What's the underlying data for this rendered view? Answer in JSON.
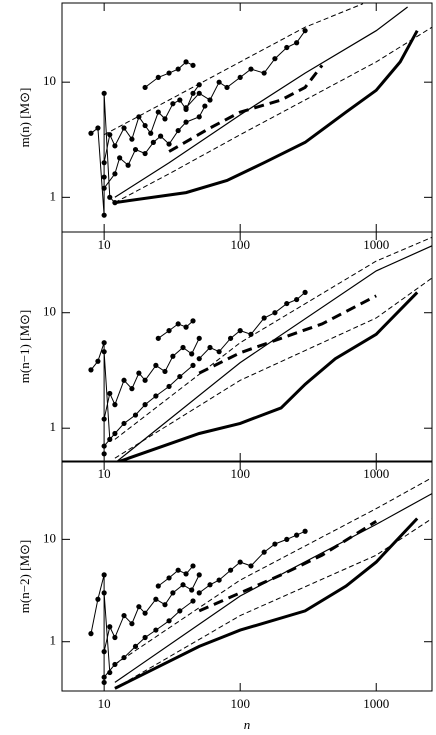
{
  "chart_data": [
    {
      "type": "line",
      "log": true,
      "ylabel": "m(n) [M⊙]",
      "color": "#000000",
      "xlim": [
        4.9,
        2570
      ],
      "ylim": [
        0.5,
        48.7
      ],
      "xticks": [
        10,
        100,
        1000
      ],
      "yticks": [
        1,
        10
      ],
      "series": [
        {
          "style": "solid",
          "width": 1.2,
          "x": [
            12,
            30,
            100,
            300,
            1000,
            1700
          ],
          "values": [
            1.0,
            2.0,
            5.2,
            12,
            28,
            45
          ]
        },
        {
          "style": "dashed",
          "width": 1,
          "x": [
            10,
            30,
            100,
            300,
            800
          ],
          "values": [
            3.5,
            7,
            15,
            30,
            48
          ]
        },
        {
          "style": "dashed",
          "width": 1,
          "x": [
            12,
            30,
            100,
            300,
            1000,
            2570
          ],
          "values": [
            0.9,
            1.6,
            3.5,
            7,
            15,
            30
          ]
        },
        {
          "style": "solid",
          "width": 3,
          "x": [
            12,
            40,
            80,
            150,
            300,
            600,
            1000,
            1500,
            2000
          ],
          "values": [
            0.9,
            1.1,
            1.4,
            2,
            3,
            5.5,
            8.5,
            15,
            28
          ]
        },
        {
          "style": "thickdash",
          "width": 3,
          "x": [
            30,
            60,
            100,
            200,
            300,
            400
          ],
          "values": [
            2.5,
            4,
            5.5,
            7,
            9,
            14
          ]
        },
        {
          "style": "marker",
          "width": 1,
          "x": [
            10,
            11,
            12,
            14,
            16,
            18,
            20,
            22,
            25,
            28,
            32,
            36,
            40,
            45,
            50
          ],
          "values": [
            2.0,
            3.5,
            2.8,
            4.0,
            3.2,
            5.0,
            4.2,
            3.6,
            5.5,
            4.8,
            6.5,
            7.0,
            5.8,
            8.0,
            9.5
          ]
        },
        {
          "style": "marker",
          "width": 1,
          "x": [
            10,
            12,
            13,
            15,
            17,
            20,
            23,
            26,
            30,
            35,
            40,
            50,
            55
          ],
          "values": [
            1.2,
            1.6,
            2.2,
            1.9,
            2.6,
            2.4,
            3.0,
            3.4,
            2.9,
            3.8,
            4.5,
            5.0,
            6.2
          ]
        },
        {
          "style": "marker",
          "width": 1,
          "x": [
            8,
            9,
            10,
            10,
            10,
            11,
            12
          ],
          "values": [
            3.6,
            4.0,
            0.7,
            1.5,
            8.0,
            1.0,
            0.9
          ]
        },
        {
          "style": "marker",
          "width": 1,
          "x": [
            40,
            50,
            60,
            70,
            80,
            100,
            120,
            150,
            180,
            220,
            260,
            300
          ],
          "values": [
            6,
            8,
            7,
            10,
            9,
            11,
            13,
            12,
            16,
            20,
            22,
            28
          ]
        },
        {
          "style": "marker",
          "width": 1,
          "x": [
            20,
            25,
            30,
            35,
            40,
            45
          ],
          "values": [
            9,
            11,
            12,
            13,
            15,
            14
          ]
        }
      ]
    },
    {
      "type": "line",
      "log": true,
      "ylabel": "m(n−1) [M⊙]",
      "color": "#000000",
      "xlim": [
        4.9,
        2570
      ],
      "ylim": [
        0.52,
        50
      ],
      "xticks": [
        10,
        100,
        1000
      ],
      "yticks": [
        1,
        10
      ],
      "series": [
        {
          "style": "solid",
          "width": 1.2,
          "x": [
            12,
            100,
            1000,
            2570
          ],
          "values": [
            0.5,
            3.7,
            23,
            38
          ]
        },
        {
          "style": "dashed",
          "width": 1,
          "x": [
            12,
            100,
            1000,
            2570
          ],
          "values": [
            0.8,
            5.5,
            28,
            45
          ]
        },
        {
          "style": "dashed",
          "width": 1,
          "x": [
            12,
            100,
            1000,
            2570
          ],
          "values": [
            0.55,
            2.6,
            9,
            20
          ]
        },
        {
          "style": "solid",
          "width": 3,
          "x": [
            12,
            50,
            100,
            200,
            300,
            500,
            1000,
            2000
          ],
          "values": [
            0.5,
            0.9,
            1.1,
            1.5,
            2.4,
            4,
            6.5,
            15
          ]
        },
        {
          "style": "thickdash",
          "width": 3,
          "x": [
            50,
            100,
            200,
            400,
            1000
          ],
          "values": [
            3,
            4.5,
            6,
            8,
            14
          ]
        },
        {
          "style": "marker",
          "width": 1,
          "x": [
            10,
            11,
            12,
            14,
            16,
            18,
            20,
            24,
            28,
            32,
            38,
            44,
            50
          ],
          "values": [
            1.2,
            2.0,
            1.6,
            2.6,
            2.2,
            3.0,
            2.6,
            3.5,
            3.1,
            4.2,
            5.0,
            4.4,
            6.0
          ]
        },
        {
          "style": "marker",
          "width": 1,
          "x": [
            10,
            12,
            14,
            17,
            20,
            24,
            30,
            36,
            45
          ],
          "values": [
            0.7,
            0.9,
            1.1,
            1.3,
            1.6,
            1.9,
            2.3,
            2.8,
            3.5
          ]
        },
        {
          "style": "marker",
          "width": 1,
          "x": [
            8,
            9,
            10,
            10,
            10,
            11
          ],
          "values": [
            3.2,
            3.8,
            5.5,
            0.6,
            4.6,
            0.8
          ]
        },
        {
          "style": "marker",
          "width": 1,
          "x": [
            50,
            60,
            70,
            85,
            100,
            120,
            150,
            180,
            220,
            260,
            300
          ],
          "values": [
            4,
            5,
            4.6,
            6,
            7,
            6.5,
            9,
            10,
            12,
            13,
            15
          ]
        },
        {
          "style": "marker",
          "width": 1,
          "x": [
            25,
            30,
            35,
            40,
            45
          ],
          "values": [
            6,
            7,
            8,
            7.5,
            8.5
          ]
        }
      ]
    },
    {
      "type": "line",
      "log": true,
      "ylabel": "m(n−2) [M⊙]",
      "xlabel": "n",
      "color": "#000000",
      "xlim": [
        4.9,
        2570
      ],
      "ylim": [
        0.33,
        57
      ],
      "xticks": [
        10,
        100,
        1000
      ],
      "yticks": [
        1,
        10
      ],
      "series": [
        {
          "style": "solid",
          "width": 1.2,
          "x": [
            12,
            100,
            1000,
            2570
          ],
          "values": [
            0.4,
            2.8,
            14,
            28
          ]
        },
        {
          "style": "dashed",
          "width": 1,
          "x": [
            12,
            100,
            1000,
            2570
          ],
          "values": [
            0.6,
            4,
            20,
            40
          ]
        },
        {
          "style": "dashed",
          "width": 1,
          "x": [
            12,
            100,
            1000,
            2570
          ],
          "values": [
            0.35,
            1.8,
            7,
            16
          ]
        },
        {
          "style": "solid",
          "width": 3,
          "x": [
            12,
            50,
            100,
            300,
            600,
            1000,
            2000
          ],
          "values": [
            0.35,
            0.9,
            1.3,
            2,
            3.5,
            6,
            16
          ]
        },
        {
          "style": "thickdash",
          "width": 3,
          "x": [
            50,
            100,
            200,
            400,
            1000
          ],
          "values": [
            2,
            3,
            4.5,
            7,
            15
          ]
        },
        {
          "style": "marker",
          "width": 1,
          "x": [
            10,
            11,
            12,
            14,
            16,
            18,
            20,
            24,
            28,
            32,
            38,
            44,
            50
          ],
          "values": [
            0.8,
            1.4,
            1.1,
            1.8,
            1.5,
            2.2,
            1.9,
            2.6,
            2.3,
            3.0,
            3.6,
            3.2,
            4.5
          ]
        },
        {
          "style": "marker",
          "width": 1,
          "x": [
            10,
            12,
            14,
            17,
            20,
            24,
            30,
            36,
            45
          ],
          "values": [
            0.45,
            0.6,
            0.7,
            0.9,
            1.1,
            1.3,
            1.6,
            2.0,
            2.5
          ]
        },
        {
          "style": "marker",
          "width": 1,
          "x": [
            8,
            9,
            10,
            10,
            10,
            11
          ],
          "values": [
            1.2,
            2.6,
            4.5,
            0.4,
            3.0,
            0.5
          ]
        },
        {
          "style": "marker",
          "width": 1,
          "x": [
            50,
            60,
            70,
            85,
            100,
            120,
            150,
            180,
            220,
            260,
            300
          ],
          "values": [
            3,
            3.6,
            4,
            5,
            6,
            5.5,
            7.5,
            9,
            10,
            11,
            12
          ]
        },
        {
          "style": "marker",
          "width": 1,
          "x": [
            25,
            30,
            35,
            40,
            45
          ],
          "values": [
            3.5,
            4.2,
            5,
            4.6,
            5.5
          ]
        }
      ]
    }
  ]
}
